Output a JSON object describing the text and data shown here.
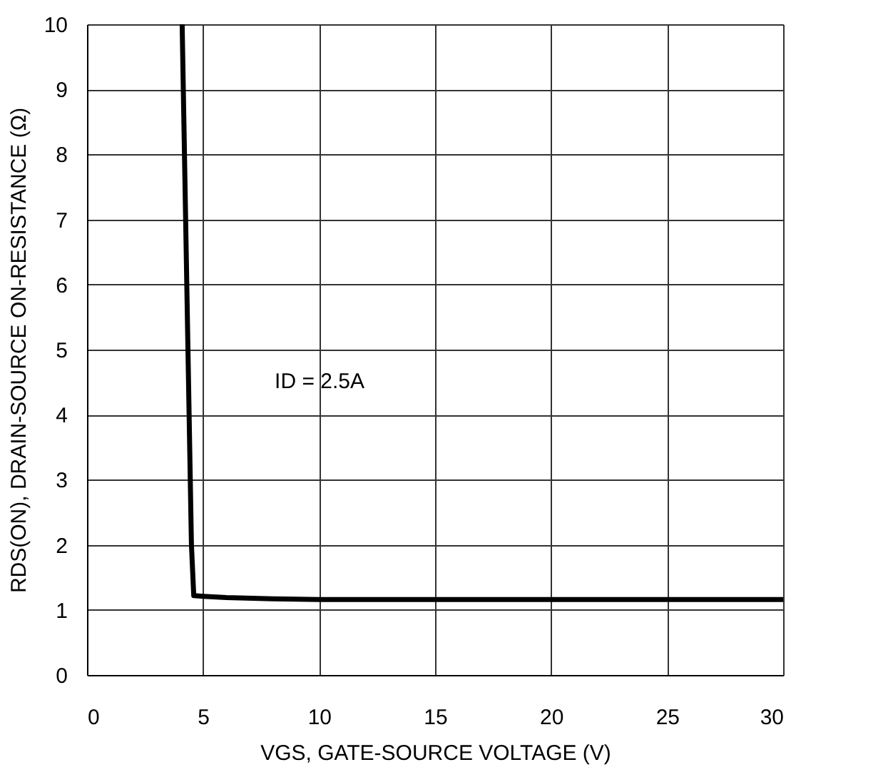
{
  "chart_data": {
    "type": "line",
    "xlabel": "VGS, GATE-SOURCE VOLTAGE (V)",
    "ylabel": "RDS(ON), DRAIN-SOURCE ON-RESISTANCE (Ω)",
    "x": [
      4.1,
      4.2,
      4.3,
      4.4,
      4.5,
      4.6,
      5,
      6,
      8,
      10,
      15,
      20,
      25,
      30
    ],
    "series": [
      {
        "color": "#000000",
        "values": [
          10,
          8,
          6,
          4,
          2,
          1.22,
          1.21,
          1.19,
          1.17,
          1.16,
          1.16,
          1.16,
          1.16,
          1.16
        ]
      }
    ],
    "xlim": [
      0,
      30
    ],
    "ylim": [
      0,
      10
    ],
    "xticks": [
      0,
      5,
      10,
      15,
      20,
      25,
      30
    ],
    "yticks": [
      0,
      1,
      2,
      3,
      4,
      5,
      6,
      7,
      8,
      9,
      10
    ],
    "grid": true,
    "marker": "none",
    "line_style": "solid",
    "annotations": [
      "ID = 2.5A"
    ]
  }
}
